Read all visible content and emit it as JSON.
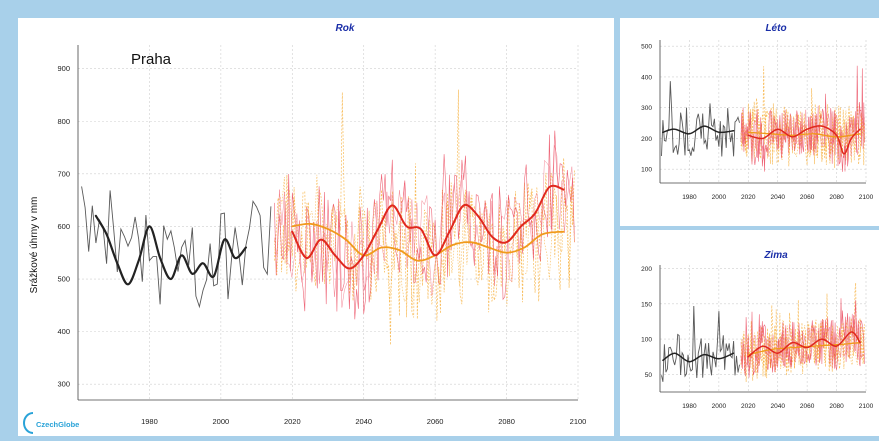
{
  "logo_text": "CzechGlobe",
  "colors": {
    "background": "#a8d0ea",
    "plot_bg": "#ffffff",
    "title": "#1a2ea8",
    "observed": "#222222",
    "model_red": "#e8324a",
    "model_orange": "#f5a623",
    "smooth_red": "#e0281e",
    "smooth_orange": "#f09a1c",
    "grid": "#cfcfcf"
  },
  "chart_data": [
    {
      "id": "rok",
      "type": "line",
      "title": "Rok",
      "annotation": "Praha",
      "ylabel": "Srážkové úhrny v mm",
      "xlim": [
        1960,
        2100
      ],
      "ylim": [
        270,
        945
      ],
      "xticks": [
        1980,
        2000,
        2020,
        2040,
        2060,
        2080,
        2100
      ],
      "yticks": [
        300,
        400,
        500,
        600,
        700,
        800,
        900
      ],
      "grid": true,
      "observed_smooth": {
        "x": [
          1965,
          1968,
          1971,
          1974,
          1977,
          1980,
          1983,
          1986,
          1989,
          1992,
          1995,
          1998,
          2001,
          2004,
          2007
        ],
        "y": [
          620,
          585,
          530,
          490,
          535,
          600,
          540,
          500,
          545,
          510,
          530,
          505,
          575,
          540,
          560
        ]
      },
      "model_red_smooth": {
        "x": [
          2020,
          2024,
          2028,
          2032,
          2036,
          2040,
          2044,
          2048,
          2052,
          2056,
          2060,
          2064,
          2068,
          2072,
          2076,
          2080,
          2084,
          2088,
          2092,
          2096
        ],
        "y": [
          590,
          540,
          575,
          545,
          520,
          545,
          595,
          640,
          600,
          595,
          545,
          590,
          640,
          620,
          580,
          570,
          600,
          625,
          675,
          670
        ]
      },
      "model_orange_smooth": {
        "x": [
          2020,
          2025,
          2030,
          2035,
          2040,
          2045,
          2050,
          2055,
          2060,
          2065,
          2070,
          2075,
          2080,
          2085,
          2090,
          2096
        ],
        "y": [
          600,
          605,
          595,
          575,
          545,
          560,
          555,
          535,
          545,
          565,
          570,
          560,
          550,
          560,
          585,
          590
        ]
      }
    },
    {
      "id": "leto",
      "type": "line",
      "title": "Léto",
      "xlim": [
        1960,
        2100
      ],
      "ylim": [
        55,
        520
      ],
      "xticks": [
        1980,
        2000,
        2020,
        2040,
        2060,
        2080,
        2100
      ],
      "yticks": [
        100,
        200,
        300,
        400,
        500
      ],
      "grid": true,
      "observed_smooth": {
        "x": [
          1962,
          1970,
          1980,
          1990,
          2000,
          2010
        ],
        "y": [
          220,
          230,
          215,
          240,
          220,
          225
        ]
      },
      "model_red_smooth": {
        "x": [
          2020,
          2030,
          2040,
          2050,
          2060,
          2070,
          2080,
          2085,
          2090,
          2096
        ],
        "y": [
          210,
          200,
          230,
          205,
          230,
          240,
          210,
          150,
          200,
          230
        ]
      },
      "model_orange_smooth": {
        "x": [
          2020,
          2035,
          2050,
          2065,
          2080,
          2096
        ],
        "y": [
          220,
          215,
          210,
          215,
          205,
          215
        ]
      }
    },
    {
      "id": "zima",
      "type": "line",
      "title": "Zima",
      "xlim": [
        1960,
        2100
      ],
      "ylim": [
        25,
        205
      ],
      "xticks": [
        1980,
        2000,
        2020,
        2040,
        2060,
        2080,
        2100
      ],
      "yticks": [
        50,
        100,
        150,
        200
      ],
      "grid": true,
      "observed_smooth": {
        "x": [
          1962,
          1970,
          1980,
          1990,
          2000,
          2010
        ],
        "y": [
          70,
          80,
          68,
          78,
          72,
          80
        ]
      },
      "model_red_smooth": {
        "x": [
          2020,
          2030,
          2040,
          2050,
          2060,
          2070,
          2080,
          2090,
          2096
        ],
        "y": [
          75,
          90,
          80,
          95,
          88,
          100,
          90,
          110,
          95
        ]
      },
      "model_orange_smooth": {
        "x": [
          2020,
          2035,
          2050,
          2065,
          2080,
          2096
        ],
        "y": [
          78,
          85,
          88,
          90,
          92,
          95
        ]
      }
    }
  ]
}
